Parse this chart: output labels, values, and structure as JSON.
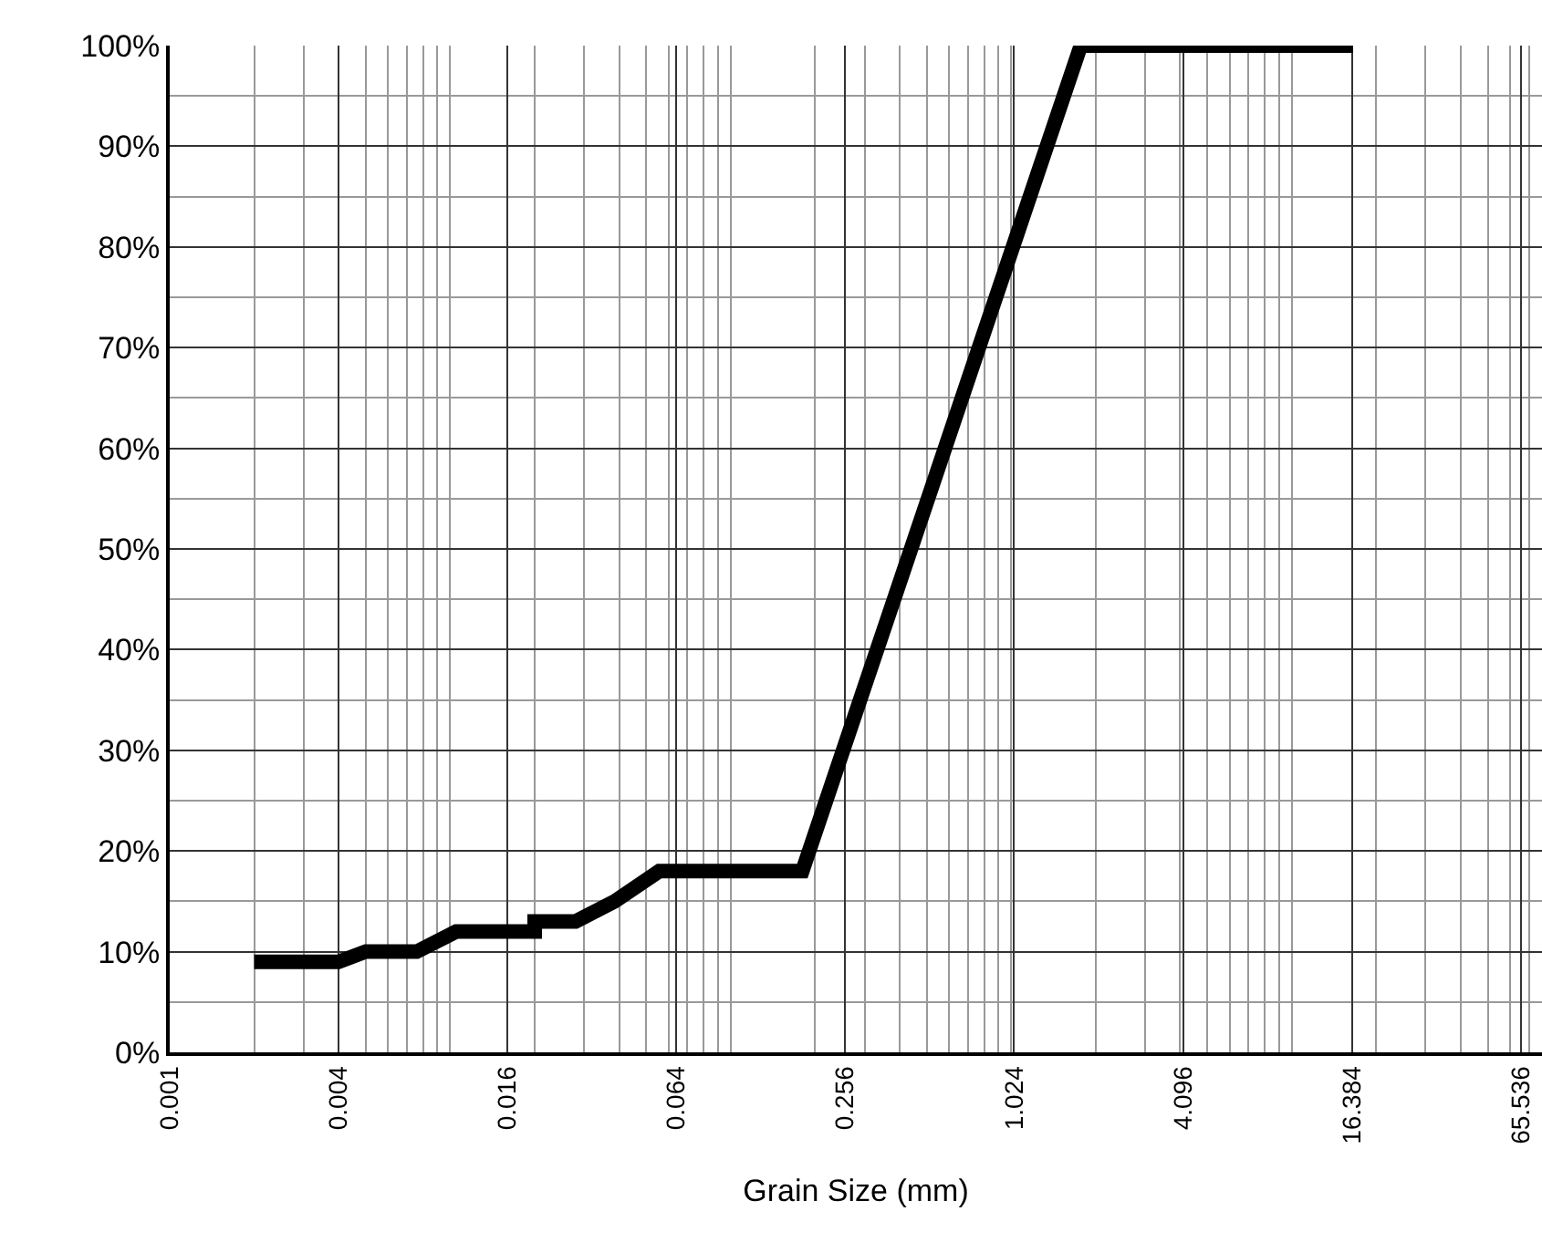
{
  "chart_data": {
    "type": "line",
    "xlabel": "Grain Size (mm)",
    "log": "x",
    "x": [
      0.002,
      0.004,
      0.005,
      0.0076,
      0.0105,
      0.02,
      0.02,
      0.028,
      0.0386,
      0.0556,
      0.18,
      1.77,
      16.5
    ],
    "series": [
      {
        "color": "#000000",
        "values": [
          9,
          9,
          10,
          10,
          12,
          12,
          13,
          13,
          15,
          18,
          18,
          100,
          100
        ]
      }
    ],
    "xlim": [
      0.001,
      78
    ],
    "xticks": [
      0.001,
      0.004,
      0.016,
      0.064,
      0.256,
      1.024,
      4.096,
      16.384,
      65.536
    ],
    "ylim": [
      0,
      100
    ],
    "yticks": [
      {
        "value": 0,
        "label": "0%"
      },
      {
        "value": 10,
        "label": "10%"
      },
      {
        "value": 20,
        "label": "20%"
      },
      {
        "value": 30,
        "label": "30%"
      },
      {
        "value": 40,
        "label": "40%"
      },
      {
        "value": 50,
        "label": "50%"
      },
      {
        "value": 60,
        "label": "60%"
      },
      {
        "value": 70,
        "label": "70%"
      },
      {
        "value": 80,
        "label": "80%"
      },
      {
        "value": 90,
        "label": "90%"
      },
      {
        "value": 100,
        "label": "100%"
      }
    ],
    "grid": true,
    "marker": "none",
    "line_style": "solid"
  }
}
